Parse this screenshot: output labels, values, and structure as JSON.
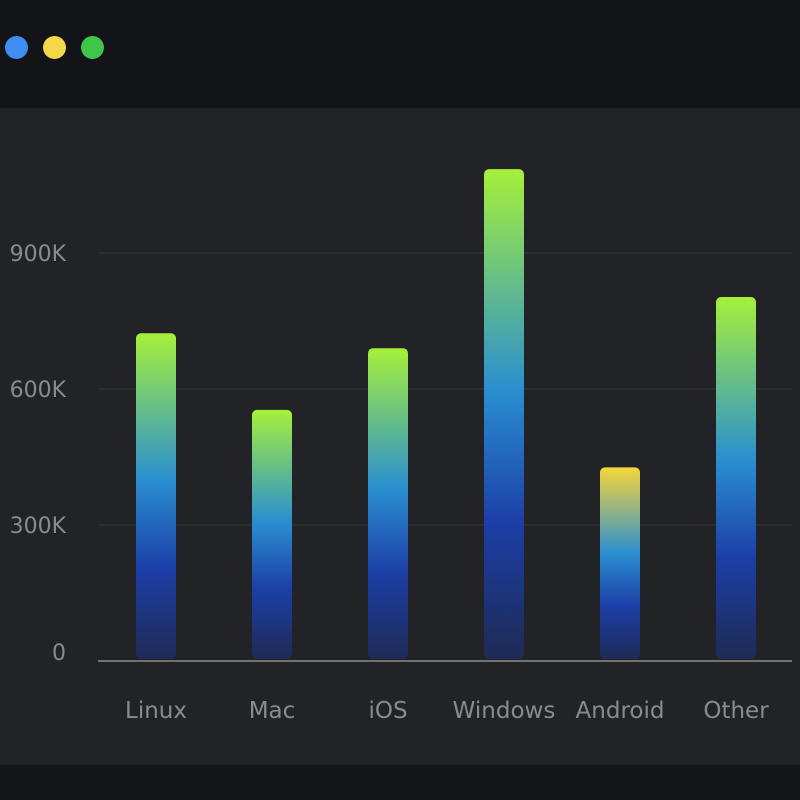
{
  "window": {
    "controls": [
      {
        "name": "close",
        "color": "#3d8ef0"
      },
      {
        "name": "minimize",
        "color": "#f5d84a"
      },
      {
        "name": "maximize",
        "color": "#3ec64a"
      }
    ]
  },
  "chart_data": {
    "type": "bar",
    "categories": [
      "Linux",
      "Mac",
      "iOS",
      "Windows",
      "Android",
      "Other"
    ],
    "values": [
      723000,
      554000,
      690000,
      1085000,
      427000,
      803000
    ],
    "yticks": [
      0,
      300000,
      600000,
      900000
    ],
    "ytick_labels": [
      "0",
      "300K",
      "600K",
      "900K"
    ],
    "ylim": [
      0,
      1200000
    ],
    "grid": true,
    "gradients": {
      "default": [
        "#a6f03a",
        "#2a8fd0",
        "#1c3fa8",
        "#1e2a55"
      ],
      "Android": [
        "#f7d63a",
        "#2a8fd0",
        "#1c3fa8",
        "#1e2a55"
      ]
    }
  }
}
